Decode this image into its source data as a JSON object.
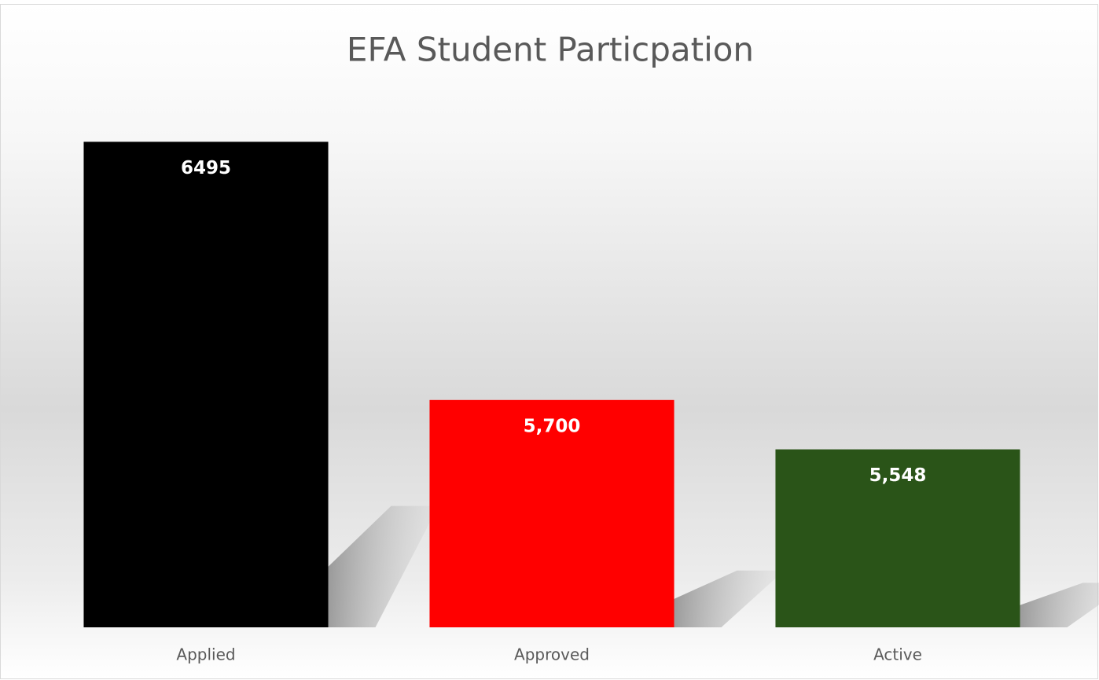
{
  "chart_data": {
    "type": "bar",
    "title": "EFA Student Particpation",
    "categories": [
      "Applied",
      "Approved",
      "Active"
    ],
    "values": [
      6495,
      5700,
      5548
    ],
    "value_labels": [
      "6495",
      "5,700",
      "5,548"
    ],
    "colors": [
      "#000000",
      "#ff0000",
      "#2a5418"
    ],
    "ylim": [
      5000,
      6600
    ]
  }
}
